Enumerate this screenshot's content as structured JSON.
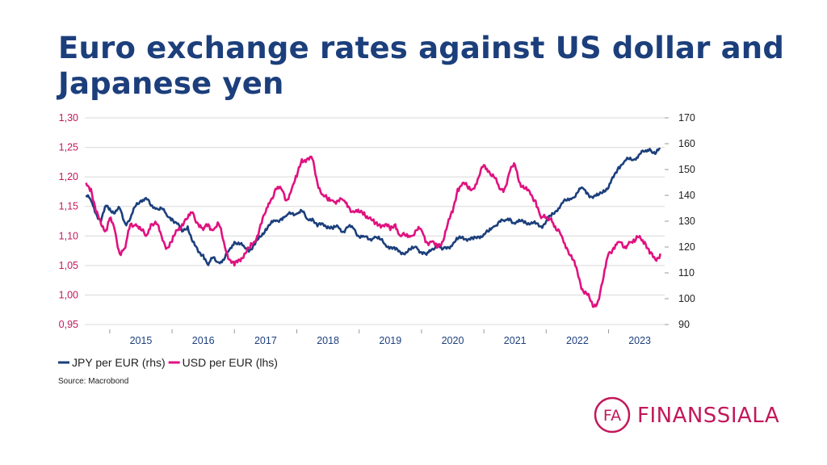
{
  "title": "Euro exchange rates against US dollar and Japanese yen",
  "source": "Source: Macrobond",
  "brand": {
    "name": "FINANSSIALA",
    "mark": "FA",
    "color": "#c2185b"
  },
  "chart_data": {
    "type": "line",
    "title": "Euro exchange rates against US dollar and Japanese yen",
    "x_range": [
      2014.6,
      2023.9
    ],
    "x_ticks": [
      "2015",
      "2016",
      "2017",
      "2018",
      "2019",
      "2020",
      "2021",
      "2022",
      "2023"
    ],
    "y_left": {
      "range": [
        0.95,
        1.3
      ],
      "ticks": [
        "0,95",
        "1,00",
        "1,05",
        "1,10",
        "1,15",
        "1,20",
        "1,25",
        "1,30"
      ]
    },
    "y_right": {
      "range": [
        90,
        170
      ],
      "ticks": [
        "90",
        "100",
        "110",
        "120",
        "130",
        "140",
        "150",
        "160",
        "170"
      ]
    },
    "grid": "horizontal",
    "legend_position": "bottom-left",
    "series": [
      {
        "name": "JPY per EUR (rhs)",
        "axis": "right",
        "color": "#1c3f7c",
        "x": [
          2014.62,
          2014.7,
          2014.78,
          2014.86,
          2014.94,
          2015.0,
          2015.08,
          2015.16,
          2015.25,
          2015.33,
          2015.42,
          2015.5,
          2015.58,
          2015.66,
          2015.75,
          2015.83,
          2015.92,
          2016.0,
          2016.08,
          2016.16,
          2016.25,
          2016.33,
          2016.42,
          2016.5,
          2016.58,
          2016.66,
          2016.75,
          2016.83,
          2016.92,
          2017.0,
          2017.08,
          2017.16,
          2017.25,
          2017.33,
          2017.42,
          2017.5,
          2017.58,
          2017.66,
          2017.75,
          2017.83,
          2017.92,
          2018.0,
          2018.08,
          2018.16,
          2018.25,
          2018.33,
          2018.42,
          2018.5,
          2018.58,
          2018.66,
          2018.75,
          2018.83,
          2018.92,
          2019.0,
          2019.08,
          2019.16,
          2019.25,
          2019.33,
          2019.42,
          2019.5,
          2019.58,
          2019.66,
          2019.75,
          2019.83,
          2019.92,
          2020.0,
          2020.08,
          2020.16,
          2020.25,
          2020.33,
          2020.42,
          2020.5,
          2020.58,
          2020.66,
          2020.75,
          2020.83,
          2020.92,
          2021.0,
          2021.08,
          2021.16,
          2021.25,
          2021.33,
          2021.42,
          2021.5,
          2021.58,
          2021.66,
          2021.75,
          2021.83,
          2021.92,
          2022.0,
          2022.08,
          2022.16,
          2022.25,
          2022.33,
          2022.42,
          2022.5,
          2022.58,
          2022.66,
          2022.75,
          2022.83,
          2022.92,
          2023.0,
          2023.08,
          2023.16,
          2023.25,
          2023.33,
          2023.42,
          2023.5,
          2023.58,
          2023.66,
          2023.75,
          2023.83
        ],
        "values": [
          140,
          138,
          133,
          130,
          136,
          135,
          133,
          135,
          129,
          131,
          136,
          138,
          139,
          136,
          135,
          135,
          132,
          131,
          129,
          126,
          128,
          122,
          118,
          117,
          113,
          116,
          114,
          115,
          119,
          122,
          121,
          120,
          119,
          121,
          124,
          127,
          129,
          130,
          131,
          132,
          133,
          133,
          134,
          131,
          131,
          128,
          129,
          128,
          127,
          128,
          126,
          128,
          127,
          124,
          124,
          123,
          124,
          123,
          121,
          120,
          119,
          118,
          118,
          119,
          120,
          118,
          117,
          119,
          121,
          119,
          120,
          121,
          123,
          124,
          123,
          123,
          124,
          125,
          126,
          128,
          130,
          130,
          131,
          129,
          130,
          130,
          129,
          129,
          128,
          130,
          132,
          134,
          137,
          138,
          139,
          141,
          143,
          141,
          139,
          140,
          142,
          143,
          147,
          151,
          153,
          154,
          154,
          156,
          157,
          158,
          156,
          158
        ]
      },
      {
        "name": "USD per EUR (lhs)",
        "axis": "left",
        "color": "#e0117f",
        "x": [
          2014.62,
          2014.7,
          2014.78,
          2014.86,
          2014.94,
          2015.0,
          2015.08,
          2015.16,
          2015.25,
          2015.33,
          2015.42,
          2015.5,
          2015.58,
          2015.66,
          2015.75,
          2015.83,
          2015.92,
          2016.0,
          2016.08,
          2016.16,
          2016.25,
          2016.33,
          2016.42,
          2016.5,
          2016.58,
          2016.66,
          2016.75,
          2016.83,
          2016.92,
          2017.0,
          2017.08,
          2017.16,
          2017.25,
          2017.33,
          2017.42,
          2017.5,
          2017.58,
          2017.66,
          2017.75,
          2017.83,
          2017.92,
          2018.0,
          2018.08,
          2018.16,
          2018.25,
          2018.33,
          2018.42,
          2018.5,
          2018.58,
          2018.66,
          2018.75,
          2018.83,
          2018.92,
          2019.0,
          2019.08,
          2019.16,
          2019.25,
          2019.33,
          2019.42,
          2019.5,
          2019.58,
          2019.66,
          2019.75,
          2019.83,
          2019.92,
          2020.0,
          2020.08,
          2020.16,
          2020.25,
          2020.33,
          2020.42,
          2020.5,
          2020.58,
          2020.66,
          2020.75,
          2020.83,
          2020.92,
          2021.0,
          2021.08,
          2021.16,
          2021.25,
          2021.33,
          2021.42,
          2021.5,
          2021.58,
          2021.66,
          2021.75,
          2021.83,
          2021.92,
          2022.0,
          2022.08,
          2022.16,
          2022.25,
          2022.33,
          2022.42,
          2022.5,
          2022.58,
          2022.66,
          2022.75,
          2022.83,
          2022.92,
          2023.0,
          2023.08,
          2023.16,
          2023.25,
          2023.33,
          2023.42,
          2023.5,
          2023.58,
          2023.66,
          2023.75,
          2023.83
        ],
        "values": [
          1.19,
          1.18,
          1.14,
          1.12,
          1.11,
          1.13,
          1.11,
          1.07,
          1.08,
          1.12,
          1.12,
          1.11,
          1.1,
          1.12,
          1.12,
          1.1,
          1.08,
          1.09,
          1.11,
          1.12,
          1.13,
          1.14,
          1.12,
          1.11,
          1.12,
          1.11,
          1.12,
          1.09,
          1.06,
          1.05,
          1.06,
          1.07,
          1.08,
          1.09,
          1.12,
          1.14,
          1.16,
          1.18,
          1.18,
          1.16,
          1.18,
          1.2,
          1.23,
          1.23,
          1.23,
          1.19,
          1.17,
          1.16,
          1.16,
          1.16,
          1.16,
          1.15,
          1.14,
          1.14,
          1.14,
          1.13,
          1.12,
          1.12,
          1.12,
          1.11,
          1.12,
          1.1,
          1.1,
          1.1,
          1.11,
          1.11,
          1.09,
          1.09,
          1.08,
          1.09,
          1.12,
          1.14,
          1.18,
          1.19,
          1.18,
          1.18,
          1.2,
          1.22,
          1.21,
          1.2,
          1.18,
          1.18,
          1.21,
          1.22,
          1.19,
          1.18,
          1.17,
          1.16,
          1.13,
          1.13,
          1.13,
          1.11,
          1.1,
          1.08,
          1.06,
          1.04,
          1.01,
          1.0,
          0.98,
          0.99,
          1.03,
          1.07,
          1.08,
          1.09,
          1.08,
          1.09,
          1.09,
          1.1,
          1.09,
          1.07,
          1.06,
          1.07
        ]
      }
    ]
  }
}
